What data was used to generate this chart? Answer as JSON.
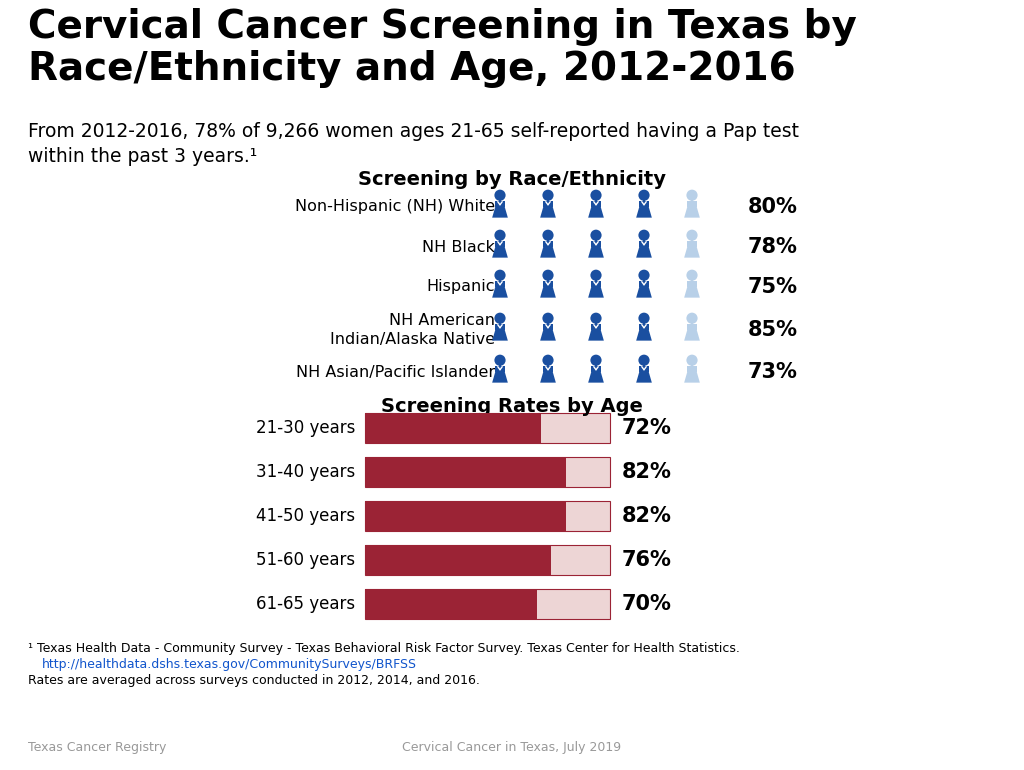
{
  "title": "Cervical Cancer Screening in Texas by\nRace/Ethnicity and Age, 2012-2016",
  "subtitle": "From 2012-2016, 78% of 9,266 women ages 21-65 self-reported having a Pap test\nwithin the past 3 years.¹",
  "section1_title": "Screening by Race/Ethnicity",
  "section2_title": "Screening Rates by Age",
  "race_labels": [
    "Non-Hispanic (NH) White",
    "NH Black",
    "Hispanic",
    "NH American\nIndian/Alaska Native",
    "NH Asian/Pacific Islander"
  ],
  "race_values": [
    80,
    78,
    75,
    85,
    73
  ],
  "age_labels": [
    "21-30 years",
    "31-40 years",
    "41-50 years",
    "51-60 years",
    "61-65 years"
  ],
  "age_values": [
    72,
    82,
    82,
    76,
    70
  ],
  "bar_max": 100,
  "bar_filled_color": "#9B2335",
  "bar_empty_color": "#EDD5D5",
  "bar_border_color": "#9B2335",
  "figure_bg": "#FFFFFF",
  "title_color": "#000000",
  "subtitle_color": "#000000",
  "section_title_color": "#000000",
  "label_color": "#000000",
  "value_color": "#000000",
  "person_color_filled": "#1A4FA0",
  "person_color_empty": "#B8D0E8",
  "footnote1": "¹ Texas Health Data - Community Survey - Texas Behavioral Risk Factor Survey. Texas Center for Health Statistics.",
  "footnote2": "http://healthdata.dshs.texas.gov/CommunitySurveys/BRFSS",
  "footnote3": "Rates are averaged across surveys conducted in 2012, 2014, and 2016.",
  "footer_left": "Texas Cancer Registry",
  "footer_center": "Cervical Cancer in Texas, July 2019",
  "link_color": "#1155CC"
}
